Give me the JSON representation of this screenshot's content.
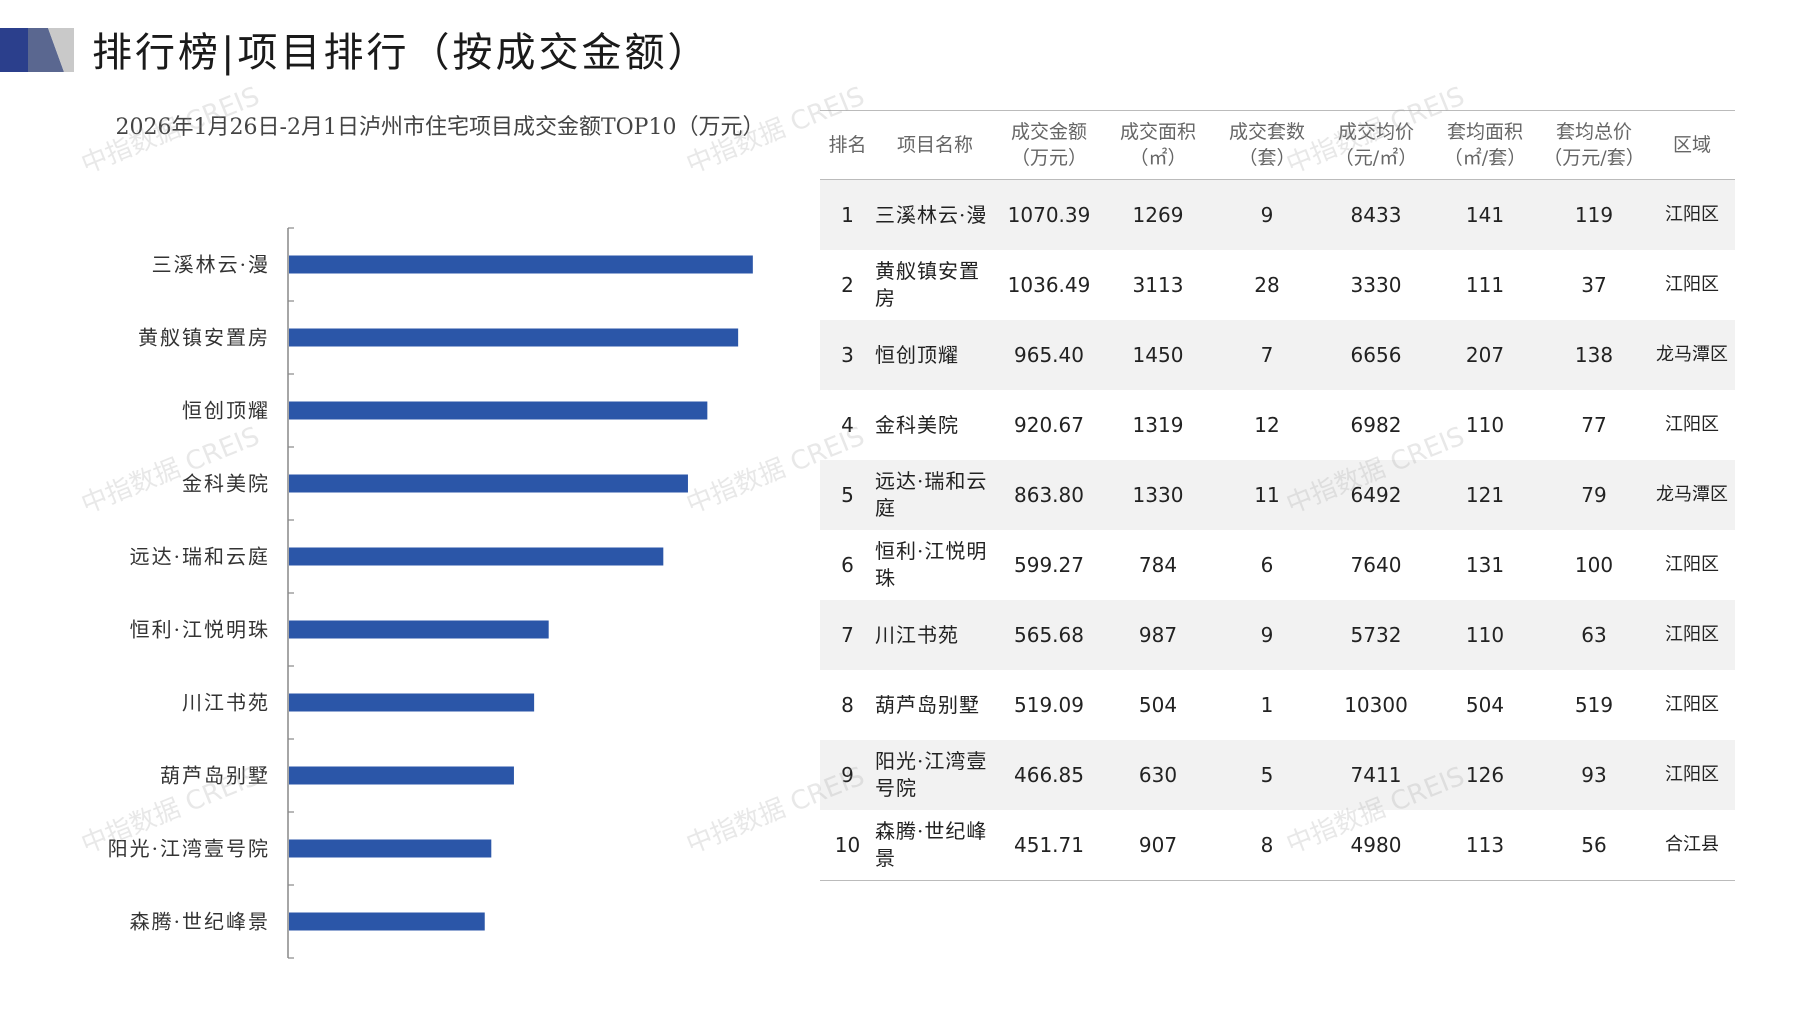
{
  "header": {
    "title": "排行榜|项目排行（按成交金额）"
  },
  "chart_data": {
    "type": "bar",
    "orientation": "horizontal",
    "title": "2026年1月26日-2月1日泸州市住宅项目成交金额TOP10（万元）",
    "categories": [
      "三溪林云·漫",
      "黄舣镇安置房",
      "恒创顶耀",
      "金科美院",
      "远达·瑞和云庭",
      "恒利·江悦明珠",
      "川江书苑",
      "葫芦岛别墅",
      "阳光·江湾壹号院",
      "森腾·世纪峰景"
    ],
    "values": [
      1070.39,
      1036.49,
      965.4,
      920.67,
      863.8,
      599.27,
      565.68,
      519.09,
      466.85,
      451.71
    ],
    "xlim": [
      0,
      1200
    ],
    "bar_color": "#2b56a8",
    "grid": false,
    "legend": "none"
  },
  "table": {
    "headers": [
      [
        "排名"
      ],
      [
        "项目名称"
      ],
      [
        "成交金额",
        "（万元）"
      ],
      [
        "成交面积",
        "（㎡）"
      ],
      [
        "成交套数",
        "（套）"
      ],
      [
        "成交均价",
        "（元/㎡）"
      ],
      [
        "套均面积",
        "（㎡/套）"
      ],
      [
        "套均总价",
        "（万元/套）"
      ],
      [
        "区域"
      ]
    ],
    "rows": [
      {
        "rank": "1",
        "name": "三溪林云·漫",
        "amount": "1070.39",
        "area": "1269",
        "units": "9",
        "price": "8433",
        "avg_area": "141",
        "avg_total": "119",
        "region": "江阳区"
      },
      {
        "rank": "2",
        "name": "黄舣镇安置房",
        "amount": "1036.49",
        "area": "3113",
        "units": "28",
        "price": "3330",
        "avg_area": "111",
        "avg_total": "37",
        "region": "江阳区"
      },
      {
        "rank": "3",
        "name": "恒创顶耀",
        "amount": "965.40",
        "area": "1450",
        "units": "7",
        "price": "6656",
        "avg_area": "207",
        "avg_total": "138",
        "region": "龙马潭区"
      },
      {
        "rank": "4",
        "name": "金科美院",
        "amount": "920.67",
        "area": "1319",
        "units": "12",
        "price": "6982",
        "avg_area": "110",
        "avg_total": "77",
        "region": "江阳区"
      },
      {
        "rank": "5",
        "name": "远达·瑞和云庭",
        "amount": "863.80",
        "area": "1330",
        "units": "11",
        "price": "6492",
        "avg_area": "121",
        "avg_total": "79",
        "region": "龙马潭区"
      },
      {
        "rank": "6",
        "name": "恒利·江悦明珠",
        "amount": "599.27",
        "area": "784",
        "units": "6",
        "price": "7640",
        "avg_area": "131",
        "avg_total": "100",
        "region": "江阳区"
      },
      {
        "rank": "7",
        "name": "川江书苑",
        "amount": "565.68",
        "area": "987",
        "units": "9",
        "price": "5732",
        "avg_area": "110",
        "avg_total": "63",
        "region": "江阳区"
      },
      {
        "rank": "8",
        "name": "葫芦岛别墅",
        "amount": "519.09",
        "area": "504",
        "units": "1",
        "price": "10300",
        "avg_area": "504",
        "avg_total": "519",
        "region": "江阳区"
      },
      {
        "rank": "9",
        "name": "阳光·江湾壹号院",
        "amount": "466.85",
        "area": "630",
        "units": "5",
        "price": "7411",
        "avg_area": "126",
        "avg_total": "93",
        "region": "江阳区"
      },
      {
        "rank": "10",
        "name": "森腾·世纪峰景",
        "amount": "451.71",
        "area": "907",
        "units": "8",
        "price": "4980",
        "avg_area": "113",
        "avg_total": "56",
        "region": "合江县"
      }
    ]
  },
  "watermark": {
    "text": "中指数据 CREIS"
  }
}
